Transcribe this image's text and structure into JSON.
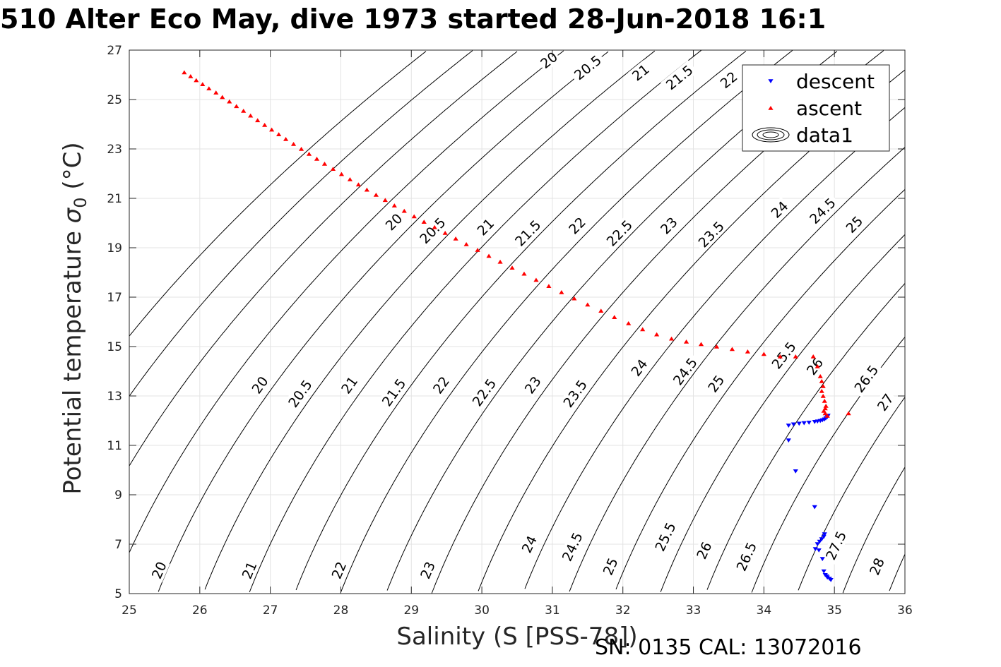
{
  "chart_data": {
    "type": "scatter",
    "title": "510 Alter Eco May, dive 1973 started 28-Jun-2018 16:1",
    "xlabel": "Salinity (S [PSS-78])",
    "ylabel": {
      "main": "Potential temperature ",
      "symbol": "σ",
      "subscript": "0",
      "unit": " (°C)"
    },
    "xlim": [
      25,
      36
    ],
    "ylim": [
      5,
      27
    ],
    "xticks": [
      "25",
      "26",
      "27",
      "28",
      "29",
      "30",
      "31",
      "32",
      "33",
      "34",
      "35",
      "36"
    ],
    "yticks": [
      "5",
      "7",
      "9",
      "11",
      "13",
      "15",
      "17",
      "19",
      "21",
      "23",
      "25",
      "27"
    ],
    "grid": true,
    "legend_position": "top-right",
    "legend": [
      {
        "label": "descent",
        "marker": "triangle-down",
        "color": "#0000ff"
      },
      {
        "label": "ascent",
        "marker": "triangle-up",
        "color": "#ff0000"
      },
      {
        "label": "data1",
        "marker": "contour",
        "color": "#000000"
      }
    ],
    "series": [
      {
        "name": "descent",
        "color": "#0000ff",
        "marker": "triangle-down",
        "x": [
          34.35,
          34.35,
          34.42,
          34.5,
          34.57,
          34.64,
          34.72,
          34.76,
          34.8,
          34.83,
          34.86,
          34.88,
          34.9,
          34.91,
          34.45,
          34.72,
          34.73,
          34.76,
          34.79,
          34.82,
          34.85,
          34.86,
          34.83,
          34.78,
          34.85,
          34.87,
          34.9,
          34.93,
          34.95,
          34.89
        ],
        "y": [
          11.2,
          11.8,
          11.85,
          11.88,
          11.9,
          11.92,
          11.95,
          11.97,
          11.99,
          12.02,
          12.05,
          12.1,
          12.15,
          12.2,
          9.95,
          8.5,
          6.8,
          7.0,
          7.1,
          7.2,
          7.3,
          7.4,
          6.4,
          6.75,
          5.9,
          5.75,
          5.65,
          5.6,
          5.55,
          5.7
        ]
      },
      {
        "name": "ascent",
        "color": "#ff0000",
        "marker": "triangle-up",
        "x": [
          25.78,
          25.87,
          25.95,
          26.04,
          26.13,
          26.23,
          26.32,
          26.42,
          26.52,
          26.62,
          26.72,
          26.82,
          26.92,
          27.02,
          27.12,
          27.22,
          27.33,
          27.44,
          27.55,
          27.66,
          27.77,
          27.89,
          28.01,
          28.13,
          28.25,
          28.37,
          28.5,
          28.63,
          28.76,
          28.9,
          29.04,
          29.18,
          29.33,
          29.48,
          29.63,
          29.78,
          29.94,
          30.1,
          30.26,
          30.43,
          30.6,
          30.77,
          30.95,
          31.13,
          31.31,
          31.5,
          31.69,
          31.88,
          32.08,
          32.28,
          32.48,
          32.69,
          32.9,
          33.11,
          33.33,
          33.55,
          33.77,
          34.0,
          34.23,
          34.45,
          34.7,
          34.76,
          34.8,
          34.82,
          34.84,
          34.82,
          34.84,
          34.86,
          34.88,
          34.87,
          34.85,
          34.87,
          34.9,
          35.2
        ],
        "y": [
          26.1,
          25.94,
          25.78,
          25.62,
          25.45,
          25.28,
          25.1,
          24.92,
          24.73,
          24.54,
          24.35,
          24.16,
          23.97,
          23.78,
          23.59,
          23.4,
          23.2,
          23.0,
          22.8,
          22.6,
          22.4,
          22.19,
          21.98,
          21.77,
          21.56,
          21.35,
          21.14,
          20.93,
          20.71,
          20.49,
          20.27,
          20.05,
          19.83,
          19.6,
          19.37,
          19.14,
          18.91,
          18.67,
          18.43,
          18.19,
          17.95,
          17.7,
          17.45,
          17.2,
          16.95,
          16.7,
          16.45,
          16.19,
          15.94,
          15.7,
          15.49,
          15.32,
          15.2,
          15.1,
          15.0,
          14.9,
          14.8,
          14.7,
          14.6,
          14.6,
          14.6,
          14.2,
          13.8,
          13.6,
          13.4,
          13.2,
          13.0,
          12.8,
          12.6,
          12.5,
          12.4,
          12.3,
          12.2,
          12.3
        ]
      },
      {
        "name": "data1",
        "type": "contour",
        "levels": [
          "20",
          "20.5",
          "21",
          "21.5",
          "22",
          "22.5",
          "23",
          "23.5",
          "24",
          "24.5",
          "25",
          "25.5",
          "26",
          "26.5",
          "27",
          "27.5",
          "28"
        ]
      }
    ],
    "contour_labels": [
      {
        "text": "20",
        "x": 30.95,
        "y": 26.6
      },
      {
        "text": "20.5",
        "x": 31.5,
        "y": 26.3
      },
      {
        "text": "21",
        "x": 32.25,
        "y": 26.1
      },
      {
        "text": "21.5",
        "x": 32.8,
        "y": 25.9
      },
      {
        "text": "22",
        "x": 33.5,
        "y": 25.8
      },
      {
        "text": "20",
        "x": 28.75,
        "y": 20.05
      },
      {
        "text": "20.5",
        "x": 29.3,
        "y": 19.7
      },
      {
        "text": "21",
        "x": 30.05,
        "y": 19.85
      },
      {
        "text": "21.5",
        "x": 30.65,
        "y": 19.6
      },
      {
        "text": "22",
        "x": 31.35,
        "y": 19.9
      },
      {
        "text": "22.5",
        "x": 31.95,
        "y": 19.6
      },
      {
        "text": "23",
        "x": 32.65,
        "y": 19.9
      },
      {
        "text": "23.5",
        "x": 33.25,
        "y": 19.55
      },
      {
        "text": "24",
        "x": 34.22,
        "y": 20.55
      },
      {
        "text": "24.5",
        "x": 34.83,
        "y": 20.5
      },
      {
        "text": "25",
        "x": 35.28,
        "y": 19.95
      },
      {
        "text": "20",
        "x": 26.85,
        "y": 13.45
      },
      {
        "text": "20.5",
        "x": 27.42,
        "y": 13.1
      },
      {
        "text": "21",
        "x": 28.12,
        "y": 13.45
      },
      {
        "text": "21.5",
        "x": 28.75,
        "y": 13.15
      },
      {
        "text": "22",
        "x": 29.42,
        "y": 13.45
      },
      {
        "text": "22.5",
        "x": 30.03,
        "y": 13.15
      },
      {
        "text": "23",
        "x": 30.72,
        "y": 13.45
      },
      {
        "text": "23.5",
        "x": 31.32,
        "y": 13.1
      },
      {
        "text": "24",
        "x": 32.23,
        "y": 14.15
      },
      {
        "text": "24.5",
        "x": 32.88,
        "y": 14.0
      },
      {
        "text": "25",
        "x": 33.32,
        "y": 13.5
      },
      {
        "text": "25.5",
        "x": 34.28,
        "y": 14.65
      },
      {
        "text": "26",
        "x": 34.72,
        "y": 14.2
      },
      {
        "text": "26.5",
        "x": 35.45,
        "y": 13.7
      },
      {
        "text": "27",
        "x": 35.72,
        "y": 12.75
      },
      {
        "text": "20",
        "x": 25.42,
        "y": 5.95
      },
      {
        "text": "21",
        "x": 26.7,
        "y": 5.95
      },
      {
        "text": "22",
        "x": 27.97,
        "y": 5.95
      },
      {
        "text": "23",
        "x": 29.23,
        "y": 5.95
      },
      {
        "text": "24",
        "x": 30.67,
        "y": 7.0
      },
      {
        "text": "24.5",
        "x": 31.28,
        "y": 6.9
      },
      {
        "text": "25",
        "x": 31.82,
        "y": 6.1
      },
      {
        "text": "25.5",
        "x": 32.6,
        "y": 7.3
      },
      {
        "text": "26",
        "x": 33.15,
        "y": 6.75
      },
      {
        "text": "26.5",
        "x": 33.75,
        "y": 6.5
      },
      {
        "text": "27.5",
        "x": 35.02,
        "y": 6.95
      },
      {
        "text": "28",
        "x": 35.6,
        "y": 6.1
      }
    ]
  },
  "footnote": "SN: 0135  CAL: 13072016"
}
